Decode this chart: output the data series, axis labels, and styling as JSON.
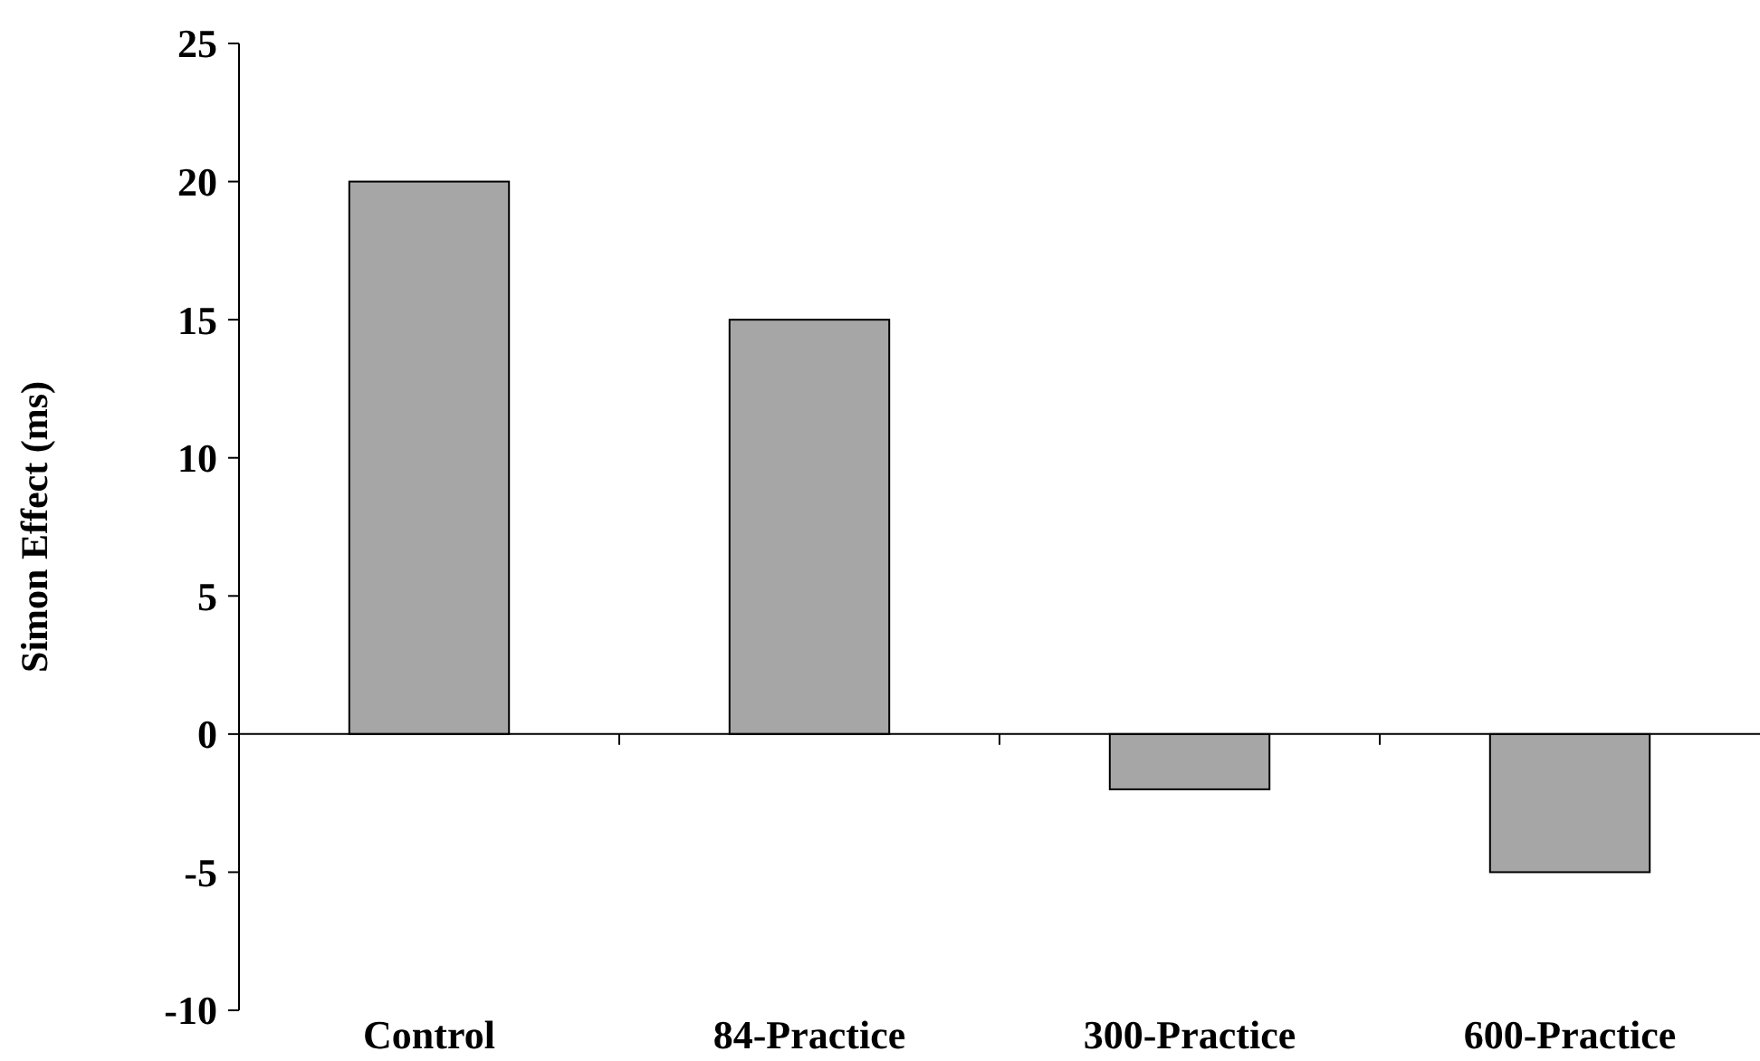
{
  "chart_data": {
    "type": "bar",
    "ylabel": "Simon Effect (ms)",
    "categories": [
      "Control",
      "84-Practice",
      "300-Practice",
      "600-Practice"
    ],
    "values": [
      20,
      15,
      -2,
      -5
    ],
    "color": "#a6a6a6",
    "ylim": [
      -10,
      25
    ],
    "yticks": [
      -10,
      -5,
      0,
      5,
      10,
      15,
      20,
      25
    ]
  }
}
